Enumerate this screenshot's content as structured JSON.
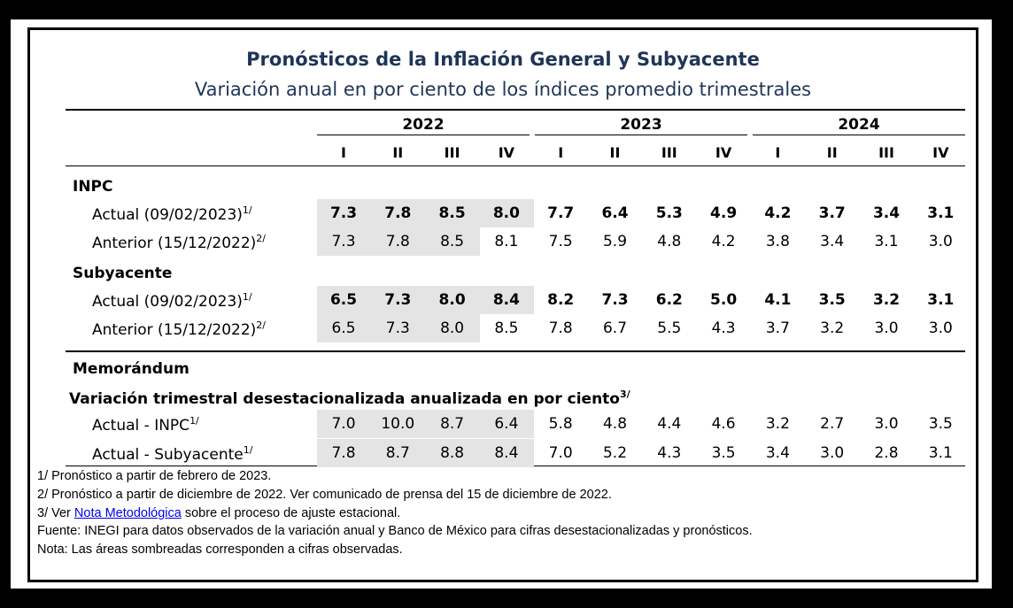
{
  "title": "Pronósticos de la Inflación General y Subyacente",
  "subtitle": "Variación anual en por ciento de los índices promedio trimestrales",
  "years": [
    "2022",
    "2023",
    "2024"
  ],
  "quarters": [
    "I",
    "II",
    "III",
    "IV",
    "I",
    "II",
    "III",
    "IV",
    "I",
    "II",
    "III",
    "IV"
  ],
  "sections": {
    "inpc": "INPC",
    "subyacente": "Subyacente",
    "memorandum": "Memorándum",
    "variacion": "Variación trimestral desestacionalizada anualizada en por ciento",
    "variacion_sup": "3/"
  },
  "rows": [
    {
      "label": "Actual (09/02/2023)",
      "sup": "1/",
      "bold": true,
      "values": [
        "7.3",
        "7.8",
        "8.5",
        "8.0",
        "7.7",
        "6.4",
        "5.3",
        "4.9",
        "4.2",
        "3.7",
        "3.4",
        "3.1"
      ],
      "shaded": 4
    },
    {
      "label": "Anterior (15/12/2022)",
      "sup": "2/",
      "bold": false,
      "values": [
        "7.3",
        "7.8",
        "8.5",
        "8.1",
        "7.5",
        "5.9",
        "4.8",
        "4.2",
        "3.8",
        "3.4",
        "3.1",
        "3.0"
      ],
      "shaded": 3
    },
    {
      "label": "Actual (09/02/2023)",
      "sup": "1/",
      "bold": true,
      "values": [
        "6.5",
        "7.3",
        "8.0",
        "8.4",
        "8.2",
        "7.3",
        "6.2",
        "5.0",
        "4.1",
        "3.5",
        "3.2",
        "3.1"
      ],
      "shaded": 4
    },
    {
      "label": "Anterior (15/12/2022)",
      "sup": "2/",
      "bold": false,
      "values": [
        "6.5",
        "7.3",
        "8.0",
        "8.5",
        "7.8",
        "6.7",
        "5.5",
        "4.3",
        "3.7",
        "3.2",
        "3.0",
        "3.0"
      ],
      "shaded": 3
    },
    {
      "label": "Actual - INPC",
      "sup": "1/",
      "bold": false,
      "values": [
        "7.0",
        "10.0",
        "8.7",
        "6.4",
        "5.8",
        "4.8",
        "4.4",
        "4.6",
        "3.2",
        "2.7",
        "3.0",
        "3.5"
      ],
      "shaded": 4
    },
    {
      "label": "Actual - Subyacente",
      "sup": "1/",
      "bold": false,
      "values": [
        "7.8",
        "8.7",
        "8.8",
        "8.4",
        "7.0",
        "5.2",
        "4.3",
        "3.5",
        "3.4",
        "3.0",
        "2.8",
        "3.1"
      ],
      "shaded": 4
    }
  ],
  "notes": {
    "n1": "1/ Pronóstico a partir de febrero de 2023.",
    "n2": "2/ Pronóstico a partir de diciembre de 2022. Ver comunicado de prensa del 15 de diciembre de 2022.",
    "n3_pre": "3/ Ver ",
    "n3_link": "Nota Metodológica",
    "n3_post": " sobre el proceso de ajuste estacional.",
    "fuente": "Fuente: INEGI para datos observados de la variación anual y Banco de México para cifras desestacionalizadas y pronósticos.",
    "nota": "Nota: Las áreas sombreadas corresponden a cifras observadas."
  }
}
